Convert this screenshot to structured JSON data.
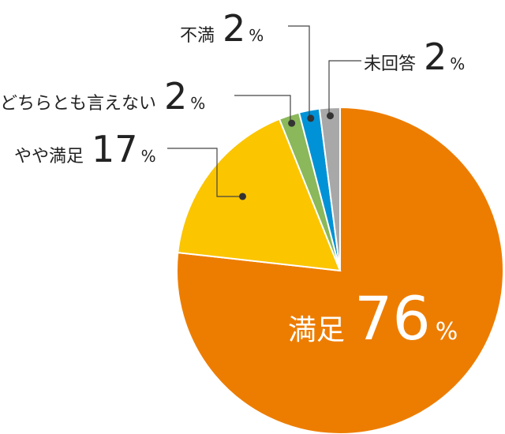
{
  "chart_data": {
    "type": "pie",
    "title": "",
    "start_angle_deg": 0,
    "direction": "clockwise",
    "slices": [
      {
        "label": "満足",
        "value": 76,
        "unit": "%",
        "color": "#ed7d00"
      },
      {
        "label": "やや満足",
        "value": 17,
        "unit": "%",
        "color": "#fbc500"
      },
      {
        "label": "どちらとも言えない",
        "value": 2,
        "unit": "%",
        "color": "#8ab85a"
      },
      {
        "label": "不満",
        "value": 2,
        "unit": "%",
        "color": "#0092d6"
      },
      {
        "label": "未回答",
        "value": 2,
        "unit": "%",
        "color": "#a8a8a8"
      }
    ]
  }
}
